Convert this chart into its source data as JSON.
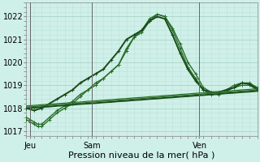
{
  "background_color": "#cff0e8",
  "plot_background": "#cff0e8",
  "grid_major_color": "#aad4c8",
  "grid_minor_color": "#bde0d8",
  "xlabel": "Pression niveau de la mer( hPa )",
  "ylim": [
    1016.8,
    1022.6
  ],
  "yticks": [
    1017,
    1018,
    1019,
    1020,
    1021,
    1022
  ],
  "day_labels": [
    "Jeu",
    "Sam",
    "Ven"
  ],
  "day_positions": [
    0.5,
    8.5,
    22.5
  ],
  "vline_positions": [
    0.5,
    8.5,
    22.5
  ],
  "vline_color": "#666666",
  "xlabel_fontsize": 8,
  "tick_fontsize": 7,
  "xmax": 30,
  "series": [
    {
      "x": [
        0,
        0.5,
        1,
        1.5,
        2,
        3,
        4,
        5,
        6,
        7,
        8,
        9,
        10,
        11,
        12,
        13,
        14,
        15,
        16,
        17,
        18,
        19,
        20,
        21,
        22,
        23,
        24,
        25,
        26,
        27,
        28,
        29,
        30
      ],
      "y": [
        1017.6,
        1017.5,
        1017.4,
        1017.3,
        1017.3,
        1017.6,
        1017.9,
        1018.1,
        1018.3,
        1018.6,
        1018.8,
        1019.1,
        1019.3,
        1019.6,
        1019.9,
        1020.5,
        1021.1,
        1021.3,
        1021.8,
        1022.1,
        1022.0,
        1021.5,
        1020.8,
        1020.0,
        1019.5,
        1018.9,
        1018.7,
        1018.7,
        1018.8,
        1019.0,
        1019.1,
        1019.1,
        1018.9
      ],
      "color": "#2a6e2a",
      "lw": 1.0,
      "marker": "+",
      "ms": 2.5
    },
    {
      "x": [
        0,
        0.5,
        1,
        1.5,
        2,
        3,
        4,
        5,
        6,
        7,
        8,
        9,
        10,
        11,
        12,
        13,
        14,
        15,
        16,
        17,
        18,
        19,
        20,
        21,
        22,
        23,
        24,
        25,
        26,
        27,
        28,
        29,
        30
      ],
      "y": [
        1017.5,
        1017.4,
        1017.3,
        1017.2,
        1017.2,
        1017.5,
        1017.8,
        1018.0,
        1018.2,
        1018.5,
        1018.8,
        1019.0,
        1019.3,
        1019.6,
        1019.9,
        1020.6,
        1021.1,
        1021.4,
        1021.9,
        1022.1,
        1022.0,
        1021.4,
        1020.6,
        1019.8,
        1019.3,
        1018.8,
        1018.6,
        1018.6,
        1018.75,
        1018.9,
        1019.0,
        1019.0,
        1018.8
      ],
      "color": "#2a6e2a",
      "lw": 1.0,
      "marker": "+",
      "ms": 2.5
    },
    {
      "x": [
        0,
        1,
        2,
        3,
        4,
        5,
        6,
        7,
        8,
        9,
        10,
        11,
        12,
        13,
        14,
        15,
        16,
        17,
        18,
        19,
        20,
        21,
        22,
        23,
        24,
        25,
        26,
        27,
        28,
        29,
        30
      ],
      "y": [
        1018.0,
        1017.9,
        1018.0,
        1018.2,
        1018.4,
        1018.6,
        1018.8,
        1019.1,
        1019.3,
        1019.5,
        1019.7,
        1020.1,
        1020.5,
        1021.0,
        1021.2,
        1021.4,
        1021.8,
        1022.0,
        1021.9,
        1021.2,
        1020.4,
        1019.7,
        1019.2,
        1018.8,
        1018.7,
        1018.7,
        1018.8,
        1018.9,
        1019.1,
        1019.05,
        1018.85
      ],
      "color": "#1a4a1a",
      "lw": 1.4,
      "marker": "+",
      "ms": 2.5
    },
    {
      "x": [
        0,
        1,
        2,
        3,
        4,
        5,
        6,
        7,
        8,
        9,
        10,
        11,
        12,
        13,
        14,
        15,
        16,
        17,
        18,
        19,
        20,
        21,
        22,
        23,
        24,
        25,
        26,
        27,
        28,
        29,
        30
      ],
      "y": [
        1018.0,
        1018.02,
        1018.05,
        1018.07,
        1018.1,
        1018.12,
        1018.15,
        1018.18,
        1018.2,
        1018.22,
        1018.25,
        1018.27,
        1018.3,
        1018.32,
        1018.35,
        1018.37,
        1018.4,
        1018.42,
        1018.45,
        1018.47,
        1018.5,
        1018.52,
        1018.55,
        1018.57,
        1018.6,
        1018.62,
        1018.65,
        1018.67,
        1018.7,
        1018.72,
        1018.75
      ],
      "color": "#1a4a1a",
      "lw": 1.4,
      "marker": null,
      "ms": 0
    },
    {
      "x": [
        0,
        1,
        2,
        3,
        4,
        5,
        6,
        7,
        8,
        9,
        10,
        11,
        12,
        13,
        14,
        15,
        16,
        17,
        18,
        19,
        20,
        21,
        22,
        23,
        24,
        25,
        26,
        27,
        28,
        29,
        30
      ],
      "y": [
        1018.05,
        1018.07,
        1018.1,
        1018.12,
        1018.15,
        1018.17,
        1018.2,
        1018.22,
        1018.25,
        1018.27,
        1018.3,
        1018.32,
        1018.35,
        1018.37,
        1018.4,
        1018.42,
        1018.45,
        1018.47,
        1018.5,
        1018.52,
        1018.55,
        1018.57,
        1018.6,
        1018.62,
        1018.65,
        1018.67,
        1018.7,
        1018.72,
        1018.75,
        1018.77,
        1018.8
      ],
      "color": "#2a6e2a",
      "lw": 0.9,
      "marker": null,
      "ms": 0
    },
    {
      "x": [
        0,
        1,
        2,
        3,
        4,
        5,
        6,
        7,
        8,
        9,
        10,
        11,
        12,
        13,
        14,
        15,
        16,
        17,
        18,
        19,
        20,
        21,
        22,
        23,
        24,
        25,
        26,
        27,
        28,
        29,
        30
      ],
      "y": [
        1018.1,
        1018.12,
        1018.15,
        1018.17,
        1018.2,
        1018.22,
        1018.25,
        1018.27,
        1018.3,
        1018.32,
        1018.35,
        1018.37,
        1018.4,
        1018.42,
        1018.45,
        1018.47,
        1018.5,
        1018.52,
        1018.55,
        1018.57,
        1018.6,
        1018.62,
        1018.65,
        1018.67,
        1018.7,
        1018.72,
        1018.75,
        1018.77,
        1018.8,
        1018.82,
        1018.85
      ],
      "color": "#2a6e2a",
      "lw": 0.9,
      "marker": null,
      "ms": 0
    }
  ]
}
